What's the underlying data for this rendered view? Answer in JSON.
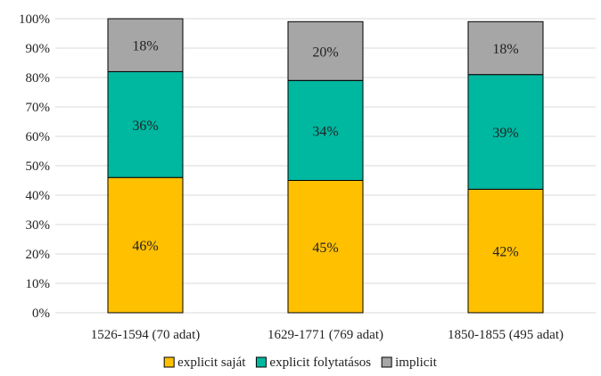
{
  "chart_data": {
    "type": "bar",
    "stacked": true,
    "categories": [
      "1526-1594 (70 adat)",
      "1629-1771 (769 adat)",
      "1850-1855 (495 adat)"
    ],
    "series": [
      {
        "name": "explicit saját",
        "values": [
          46,
          45,
          42
        ],
        "color": "#FFC000"
      },
      {
        "name": "explicit folytatásos",
        "values": [
          36,
          34,
          39
        ],
        "color": "#00B7A0"
      },
      {
        "name": "implicit",
        "values": [
          18,
          20,
          18
        ],
        "color": "#A6A6A6"
      }
    ],
    "data_labels": [
      [
        "46%",
        "45%",
        "42%"
      ],
      [
        "36%",
        "34%",
        "39%"
      ],
      [
        "18%",
        "20%",
        "18%"
      ]
    ],
    "ylim": [
      0,
      100
    ],
    "y_ticks": [
      "0%",
      "10%",
      "20%",
      "30%",
      "40%",
      "50%",
      "60%",
      "70%",
      "80%",
      "90%",
      "100%"
    ],
    "grid": true,
    "legend_position": "bottom"
  }
}
